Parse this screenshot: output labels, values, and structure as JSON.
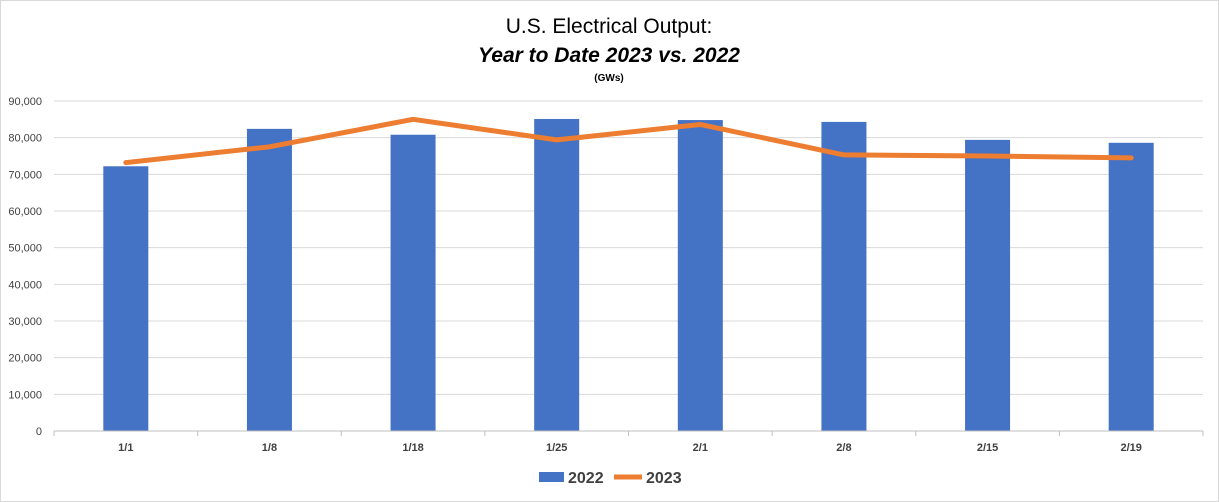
{
  "chart_data": {
    "type": "bar+line",
    "title": "U.S. Electrical Output:",
    "subtitle": "Year to Date 2023 vs. 2022",
    "unit_note": "(GWs)",
    "categories": [
      "1/1",
      "1/8",
      "1/18",
      "1/25",
      "2/1",
      "2/8",
      "2/15",
      "2/19"
    ],
    "ylim": [
      0,
      90000
    ],
    "yticks": [
      "0",
      "10,000",
      "20,000",
      "30,000",
      "40,000",
      "50,000",
      "60,000",
      "70,000",
      "80,000",
      "90,000"
    ],
    "grid": true,
    "legend_position": "bottom",
    "series": [
      {
        "name": "2022",
        "type": "bar",
        "color": "#4472C4",
        "values": [
          72200,
          82400,
          80800,
          85100,
          84800,
          84300,
          79400,
          78600
        ]
      },
      {
        "name": "2023",
        "type": "line",
        "color": "#ED7D31",
        "values": [
          73200,
          77500,
          85000,
          79400,
          83600,
          75300,
          75000,
          74500
        ]
      }
    ]
  }
}
